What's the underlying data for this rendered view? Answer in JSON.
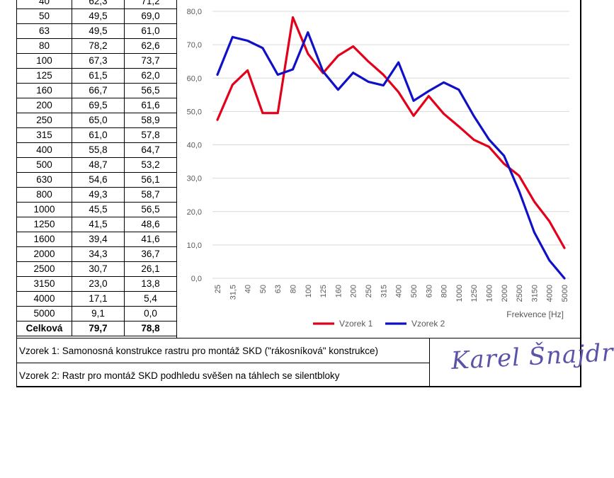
{
  "table": {
    "rows": [
      [
        "40",
        "62,3",
        "71,2"
      ],
      [
        "50",
        "49,5",
        "69,0"
      ],
      [
        "63",
        "49,5",
        "61,0"
      ],
      [
        "80",
        "78,2",
        "62,6"
      ],
      [
        "100",
        "67,3",
        "73,7"
      ],
      [
        "125",
        "61,5",
        "62,0"
      ],
      [
        "160",
        "66,7",
        "56,5"
      ],
      [
        "200",
        "69,5",
        "61,6"
      ],
      [
        "250",
        "65,0",
        "58,9"
      ],
      [
        "315",
        "61,0",
        "57,8"
      ],
      [
        "400",
        "55,8",
        "64,7"
      ],
      [
        "500",
        "48,7",
        "53,2"
      ],
      [
        "630",
        "54,6",
        "56,1"
      ],
      [
        "800",
        "49,3",
        "58,7"
      ],
      [
        "1000",
        "45,5",
        "56,5"
      ],
      [
        "1250",
        "41,5",
        "48,6"
      ],
      [
        "1600",
        "39,4",
        "41,6"
      ],
      [
        "2000",
        "34,3",
        "36,7"
      ],
      [
        "2500",
        "30,7",
        "26,1"
      ],
      [
        "3150",
        "23,0",
        "13,8"
      ],
      [
        "4000",
        "17,1",
        "5,4"
      ],
      [
        "5000",
        "9,1",
        "0,0"
      ]
    ],
    "total": [
      "Celková",
      "79,7",
      "78,8"
    ]
  },
  "chart_data": {
    "type": "line",
    "title": "",
    "xlabel": "Frekvence [Hz]",
    "ylabel": "",
    "ylim": [
      0,
      80
    ],
    "yticks": [
      "0,0",
      "10,0",
      "20,0",
      "30,0",
      "40,0",
      "50,0",
      "60,0",
      "70,0",
      "80,0"
    ],
    "categories": [
      "25",
      "31,5",
      "40",
      "50",
      "63",
      "80",
      "100",
      "125",
      "160",
      "200",
      "250",
      "315",
      "400",
      "500",
      "630",
      "800",
      "1000",
      "1250",
      "1600",
      "2000",
      "2500",
      "3150",
      "4000",
      "5000"
    ],
    "series": [
      {
        "name": "Vzorek 1",
        "color": "#e3001b",
        "values": [
          47.5,
          58.0,
          62.3,
          49.5,
          49.5,
          78.2,
          67.3,
          61.5,
          66.7,
          69.5,
          65.0,
          61.0,
          55.8,
          48.7,
          54.6,
          49.3,
          45.5,
          41.5,
          39.4,
          34.3,
          30.7,
          23.0,
          17.1,
          9.1
        ]
      },
      {
        "name": "Vzorek 2",
        "color": "#1010c8",
        "values": [
          61.0,
          72.3,
          71.2,
          69.0,
          61.0,
          62.6,
          73.7,
          62.0,
          56.5,
          61.6,
          58.9,
          57.8,
          64.7,
          53.2,
          56.1,
          58.7,
          56.5,
          48.6,
          41.6,
          36.7,
          26.1,
          13.8,
          5.4,
          0.0
        ]
      }
    ],
    "legend_position": "bottom-center",
    "grid": true
  },
  "notes": {
    "note1": "Vzorek 1: Samonosná konstrukce rastru pro montáž SKD (\"rákosníková\" konstrukce)",
    "note2": "Vzorek 2: Rastr pro montáž SKD podhledu svěšen na táhlech se silentbloky"
  },
  "signature": "Karel Šnajdr"
}
